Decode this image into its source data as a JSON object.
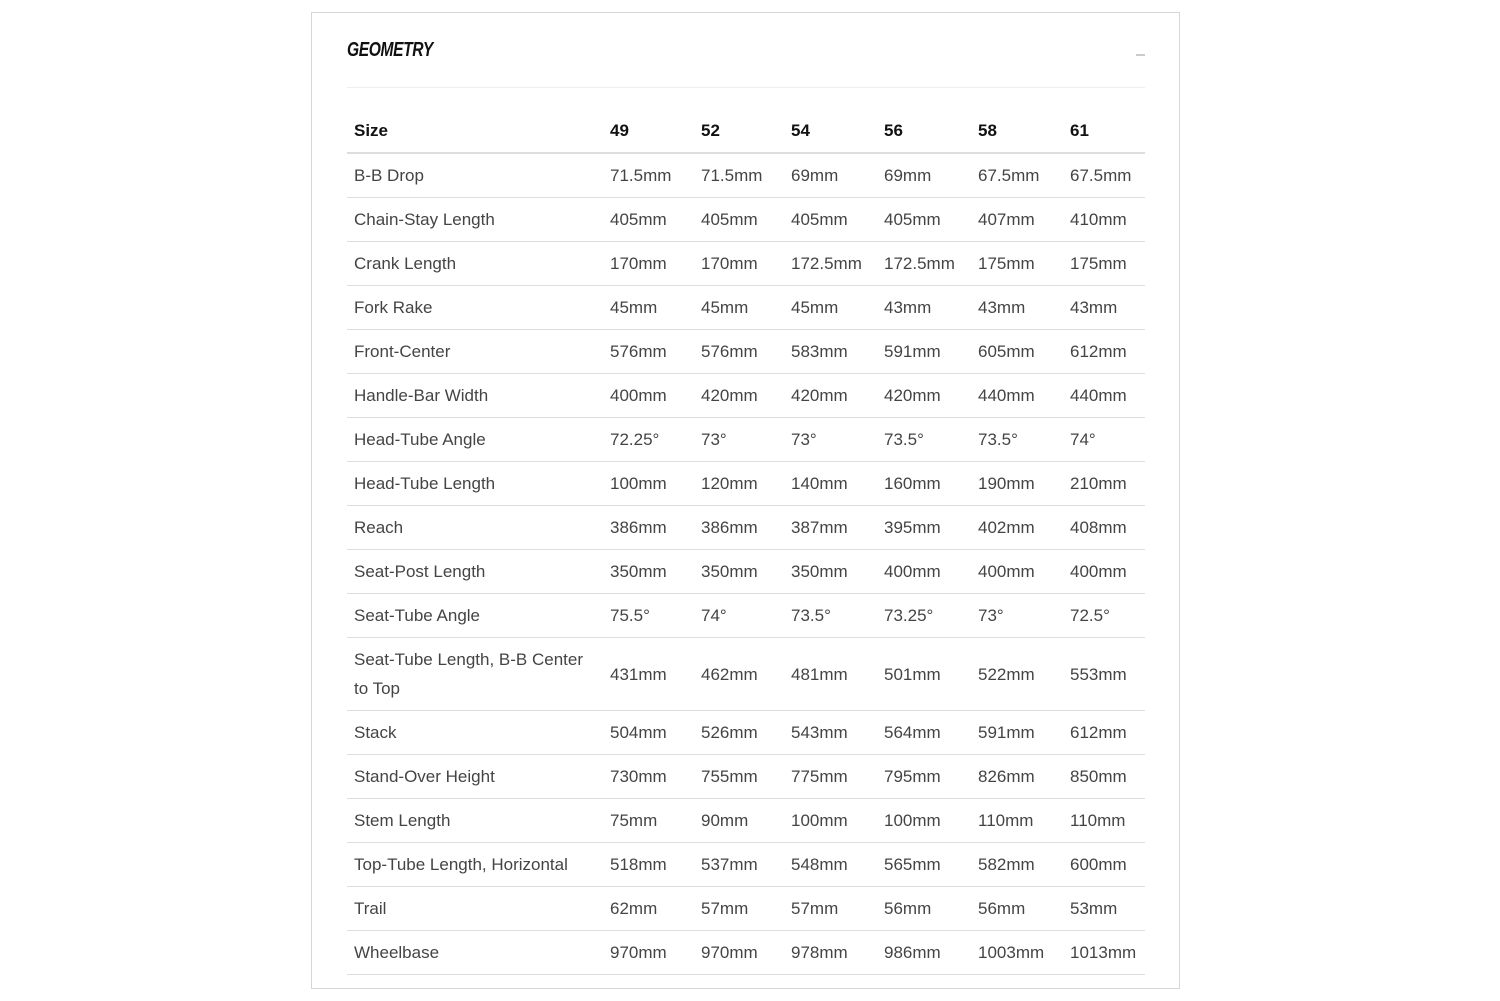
{
  "section": {
    "title": "GEOMETRY",
    "collapse_icon": "minus-icon"
  },
  "table": {
    "headers": [
      "Size",
      "49",
      "52",
      "54",
      "56",
      "58",
      "61"
    ],
    "rows": [
      {
        "label": "B-B Drop",
        "values": [
          "71.5mm",
          "71.5mm",
          "69mm",
          "69mm",
          "67.5mm",
          "67.5mm"
        ]
      },
      {
        "label": "Chain-Stay Length",
        "values": [
          "405mm",
          "405mm",
          "405mm",
          "405mm",
          "407mm",
          "410mm"
        ]
      },
      {
        "label": "Crank Length",
        "values": [
          "170mm",
          "170mm",
          "172.5mm",
          "172.5mm",
          "175mm",
          "175mm"
        ]
      },
      {
        "label": "Fork Rake",
        "values": [
          "45mm",
          "45mm",
          "45mm",
          "43mm",
          "43mm",
          "43mm"
        ]
      },
      {
        "label": "Front-Center",
        "values": [
          "576mm",
          "576mm",
          "583mm",
          "591mm",
          "605mm",
          "612mm"
        ]
      },
      {
        "label": "Handle-Bar Width",
        "values": [
          "400mm",
          "420mm",
          "420mm",
          "420mm",
          "440mm",
          "440mm"
        ]
      },
      {
        "label": "Head-Tube Angle",
        "values": [
          "72.25°",
          "73°",
          "73°",
          "73.5°",
          "73.5°",
          "74°"
        ]
      },
      {
        "label": "Head-Tube Length",
        "values": [
          "100mm",
          "120mm",
          "140mm",
          "160mm",
          "190mm",
          "210mm"
        ]
      },
      {
        "label": "Reach",
        "values": [
          "386mm",
          "386mm",
          "387mm",
          "395mm",
          "402mm",
          "408mm"
        ]
      },
      {
        "label": "Seat-Post Length",
        "values": [
          "350mm",
          "350mm",
          "350mm",
          "400mm",
          "400mm",
          "400mm"
        ]
      },
      {
        "label": "Seat-Tube Angle",
        "values": [
          "75.5°",
          "74°",
          "73.5°",
          "73.25°",
          "73°",
          "72.5°"
        ]
      },
      {
        "label": "Seat-Tube Length, B-B Center to Top",
        "values": [
          "431mm",
          "462mm",
          "481mm",
          "501mm",
          "522mm",
          "553mm"
        ]
      },
      {
        "label": "Stack",
        "values": [
          "504mm",
          "526mm",
          "543mm",
          "564mm",
          "591mm",
          "612mm"
        ]
      },
      {
        "label": "Stand-Over Height",
        "values": [
          "730mm",
          "755mm",
          "775mm",
          "795mm",
          "826mm",
          "850mm"
        ]
      },
      {
        "label": "Stem Length",
        "values": [
          "75mm",
          "90mm",
          "100mm",
          "100mm",
          "110mm",
          "110mm"
        ]
      },
      {
        "label": "Top-Tube Length, Horizontal",
        "values": [
          "518mm",
          "537mm",
          "548mm",
          "565mm",
          "582mm",
          "600mm"
        ]
      },
      {
        "label": "Trail",
        "values": [
          "62mm",
          "57mm",
          "57mm",
          "56mm",
          "56mm",
          "53mm"
        ]
      },
      {
        "label": "Wheelbase",
        "values": [
          "970mm",
          "970mm",
          "978mm",
          "986mm",
          "1003mm",
          "1013mm"
        ]
      }
    ]
  }
}
